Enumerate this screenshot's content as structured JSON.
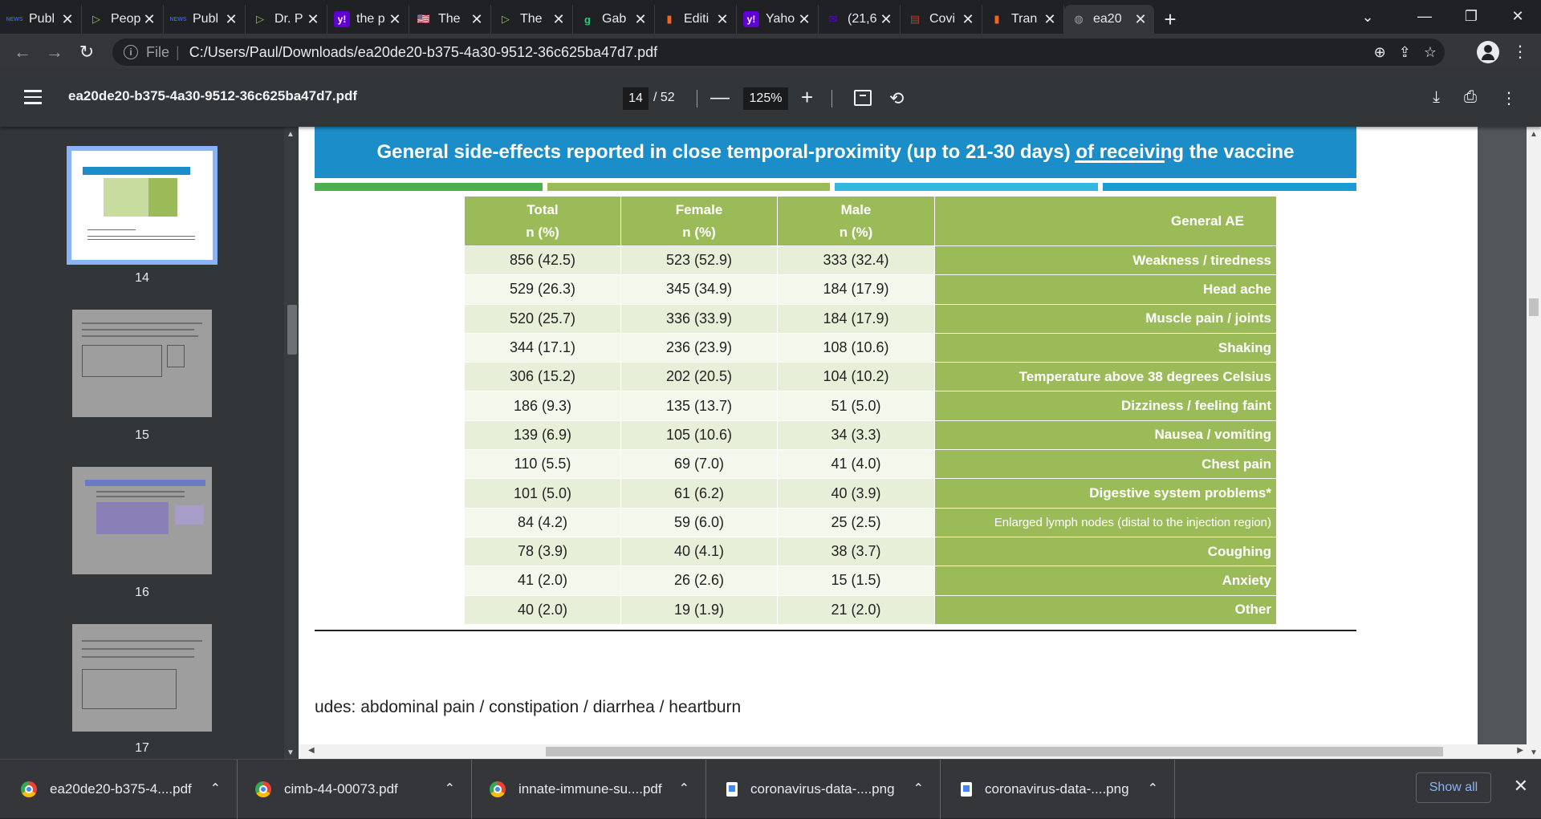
{
  "browser": {
    "tabs": [
      {
        "title": "Publ",
        "icon": "health-news-icon",
        "favicon_text": "NEWS",
        "favicon_color": "#3b5bdb"
      },
      {
        "title": "Peop",
        "icon": "rumble-icon",
        "favicon_text": "▷",
        "favicon_color": "#85c742"
      },
      {
        "title": "Publ",
        "icon": "health-news-icon",
        "favicon_text": "NEWS",
        "favicon_color": "#3b5bdb"
      },
      {
        "title": "Dr. P",
        "icon": "rumble-icon",
        "favicon_text": "▷",
        "favicon_color": "#85c742"
      },
      {
        "title": "the p",
        "icon": "yahoo-icon",
        "favicon_text": "y!",
        "favicon_color": "#6001d2"
      },
      {
        "title": "The",
        "icon": "us-flag-icon",
        "favicon_text": "🇺🇸",
        "favicon_color": "#b22234"
      },
      {
        "title": "The",
        "icon": "rumble-icon",
        "favicon_text": "▷",
        "favicon_color": "#85c742"
      },
      {
        "title": "Gab",
        "icon": "gab-icon",
        "favicon_text": "g",
        "favicon_color": "#21cf7a"
      },
      {
        "title": "Editi",
        "icon": "bookmark-icon",
        "favicon_text": "▮",
        "favicon_color": "#f26522"
      },
      {
        "title": "Yaho",
        "icon": "yahoo-icon",
        "favicon_text": "y!",
        "favicon_color": "#6001d2"
      },
      {
        "title": "(21,6",
        "icon": "yahoo-mail-icon",
        "favicon_text": "✉",
        "favicon_color": "#6001d2"
      },
      {
        "title": "Covi",
        "icon": "document-icon",
        "favicon_text": "▤",
        "favicon_color": "#d93025"
      },
      {
        "title": "Tran",
        "icon": "bookmark-icon",
        "favicon_text": "▮",
        "favicon_color": "#f26522"
      },
      {
        "title": "ea20",
        "icon": "globe-icon",
        "favicon_text": "◍",
        "favicon_color": "#9aa0a6",
        "active": true
      }
    ],
    "address_scheme": "File",
    "address_url": "C:/Users/Paul/Downloads/ea20de20-b375-4a30-9512-36c625ba47d7.pdf"
  },
  "pdf_viewer": {
    "filename": "ea20de20-b375-4a30-9512-36c625ba47d7.pdf",
    "current_page": "14",
    "total_pages": "/ 52",
    "zoom": "125%",
    "thumbnails": [
      {
        "number": "14",
        "active": true
      },
      {
        "number": "15"
      },
      {
        "number": "16"
      },
      {
        "number": "17"
      }
    ]
  },
  "slide": {
    "title": "General side-effects reported in close temporal-proximity (up to 21-30 days) of receiving the vaccine",
    "stripe_colors": [
      "#4caf50",
      "#9bbb59",
      "#35b6e0",
      "#1b9ad6"
    ],
    "header_color": "#1b8dc9",
    "table_green": "#9bbb59",
    "table": {
      "headers": [
        {
          "line1": "Total",
          "line2": "n (%)"
        },
        {
          "line1": "Female",
          "line2": "n (%)"
        },
        {
          "line1": "Male",
          "line2": "n (%)"
        },
        {
          "line1": "General AE",
          "line2": ""
        }
      ],
      "rows": [
        {
          "total": "856 (42.5)",
          "female": "523 (52.9)",
          "male": "333 (32.4)",
          "ae": "Weakness / tiredness"
        },
        {
          "total": "529 (26.3)",
          "female": "345 (34.9)",
          "male": "184 (17.9)",
          "ae": "Head ache"
        },
        {
          "total": "520 (25.7)",
          "female": "336 (33.9)",
          "male": "184 (17.9)",
          "ae": "Muscle pain / joints"
        },
        {
          "total": "344 (17.1)",
          "female": "236 (23.9)",
          "male": "108 (10.6)",
          "ae": "Shaking"
        },
        {
          "total": "306 (15.2)",
          "female": "202 (20.5)",
          "male": "104 (10.2)",
          "ae": "Temperature above 38 degrees Celsius"
        },
        {
          "total": "186 (9.3)",
          "female": "135 (13.7)",
          "male": "51 (5.0)",
          "ae": "Dizziness / feeling faint"
        },
        {
          "total": "139 (6.9)",
          "female": "105 (10.6)",
          "male": "34 (3.3)",
          "ae": "Nausea / vomiting"
        },
        {
          "total": "110 (5.5)",
          "female": "69 (7.0)",
          "male": "41 (4.0)",
          "ae": "Chest pain"
        },
        {
          "total": "101 (5.0)",
          "female": "61 (6.2)",
          "male": "40 (3.9)",
          "ae": "Digestive system problems*"
        },
        {
          "total": "84 (4.2)",
          "female": "59 (6.0)",
          "male": "25 (2.5)",
          "ae": "Enlarged lymph nodes (distal to the injection region)"
        },
        {
          "total": "78 (3.9)",
          "female": "40 (4.1)",
          "male": "38 (3.7)",
          "ae": "Coughing"
        },
        {
          "total": "41 (2.0)",
          "female": "26 (2.6)",
          "male": "15 (1.5)",
          "ae": "Anxiety"
        },
        {
          "total": "40 (2.0)",
          "female": "19 (1.9)",
          "male": "21 (2.0)",
          "ae": "Other"
        }
      ]
    },
    "footnote": "udes: abdominal pain / constipation / diarrhea / heartburn"
  },
  "downloads": {
    "items": [
      {
        "name": "ea20de20-b375-4....pdf",
        "icon": "chrome-icon"
      },
      {
        "name": "cimb-44-00073.pdf",
        "icon": "chrome-icon"
      },
      {
        "name": "innate-immune-su....pdf",
        "icon": "chrome-icon"
      },
      {
        "name": "coronavirus-data-....png",
        "icon": "image-file-icon"
      },
      {
        "name": "coronavirus-data-....png",
        "icon": "image-file-icon"
      }
    ],
    "show_all_label": "Show all"
  }
}
